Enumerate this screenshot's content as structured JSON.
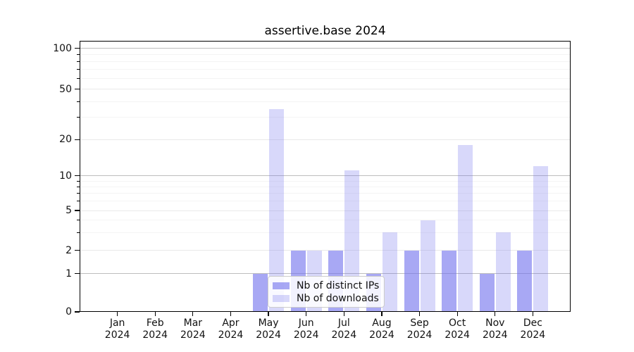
{
  "figure": {
    "background": "#ffffff"
  },
  "chart_data": {
    "type": "bar",
    "title": "assertive.base 2024",
    "categories": [
      "Jan 2024",
      "Feb 2024",
      "Mar 2024",
      "Apr 2024",
      "May 2024",
      "Jun 2024",
      "Jul 2024",
      "Aug 2024",
      "Sep 2024",
      "Oct 2024",
      "Nov 2024",
      "Dec 2024"
    ],
    "x_months": [
      "Jan",
      "Feb",
      "Mar",
      "Apr",
      "May",
      "Jun",
      "Jul",
      "Aug",
      "Sep",
      "Oct",
      "Nov",
      "Dec"
    ],
    "x_year": "2024",
    "series": [
      {
        "name": "Nb of distinct IPs",
        "color": "rgba(115,115,238,0.62)",
        "values": [
          0,
          0,
          0,
          0,
          1,
          2,
          2,
          1,
          2,
          2,
          1,
          2
        ]
      },
      {
        "name": "Nb of downloads",
        "color": "rgba(115,115,238,0.28)",
        "values": [
          0,
          0,
          0,
          0,
          35,
          2,
          11,
          3,
          4,
          18,
          3,
          12
        ]
      }
    ],
    "yticks": [
      0,
      1,
      2,
      5,
      10,
      20,
      50,
      100
    ],
    "major_gridlines": [
      1,
      10,
      100
    ],
    "mid_gridlines": [
      2,
      5,
      20,
      50
    ],
    "minor_gridlines": [
      3,
      4,
      6,
      7,
      8,
      9,
      30,
      40,
      60,
      70,
      80,
      90
    ],
    "yscale": "symlog",
    "ylim": [
      0,
      114
    ],
    "grid": true,
    "legend_position": "lower-center",
    "bar_group": "pairs: distinct-IPs (left, darker), downloads (right, lighter)"
  },
  "colors": {
    "bar_base": "#7373ee",
    "axis": "#000000",
    "text": "#111111",
    "grid_major": "#bdbdbd",
    "grid_mid": "#e9e9e9",
    "grid_minor": "#f4f4f4",
    "legend_border": "#cccccc"
  }
}
